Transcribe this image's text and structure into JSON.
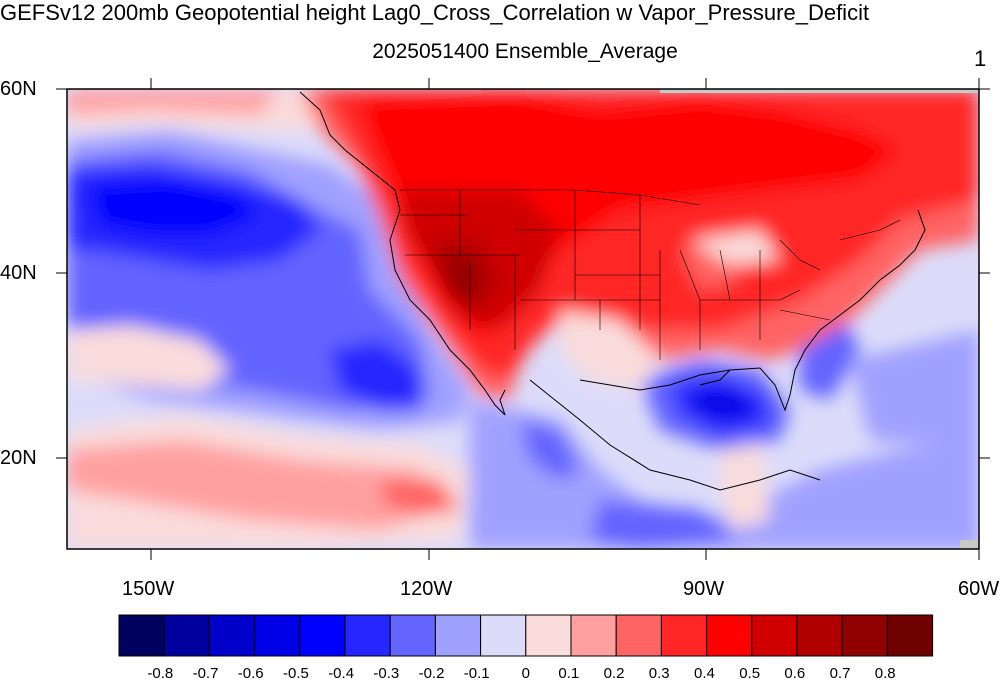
{
  "title": "GEFSv12 200mb Geopotential height Lag0_Cross_Correlation w Vapor_Pressure_Deficit",
  "subtitle": "2025051400 Ensemble_Average",
  "panel_number": "1",
  "lat_labels": [
    "60N",
    "40N",
    "20N"
  ],
  "lon_labels": [
    "150W",
    "120W",
    "90W",
    "60W"
  ],
  "colorbar": {
    "labels": [
      "-0.8",
      "-0.7",
      "-0.6",
      "-0.5",
      "-0.4",
      "-0.3",
      "-0.2",
      "-0.1",
      "0",
      "0.1",
      "0.2",
      "0.3",
      "0.4",
      "0.5",
      "0.6",
      "0.7",
      "0.8"
    ],
    "colors": [
      "#00005e",
      "#00009e",
      "#0000c8",
      "#0000e6",
      "#0000ff",
      "#2626ff",
      "#6464ff",
      "#a0a0ff",
      "#dcdcfa",
      "#fadcdc",
      "#ffa0a0",
      "#ff6464",
      "#ff2626",
      "#ff0000",
      "#d00000",
      "#b00000",
      "#900000",
      "#6e0000"
    ]
  },
  "colors": {
    "land_gray": "#c8c8c8"
  }
}
